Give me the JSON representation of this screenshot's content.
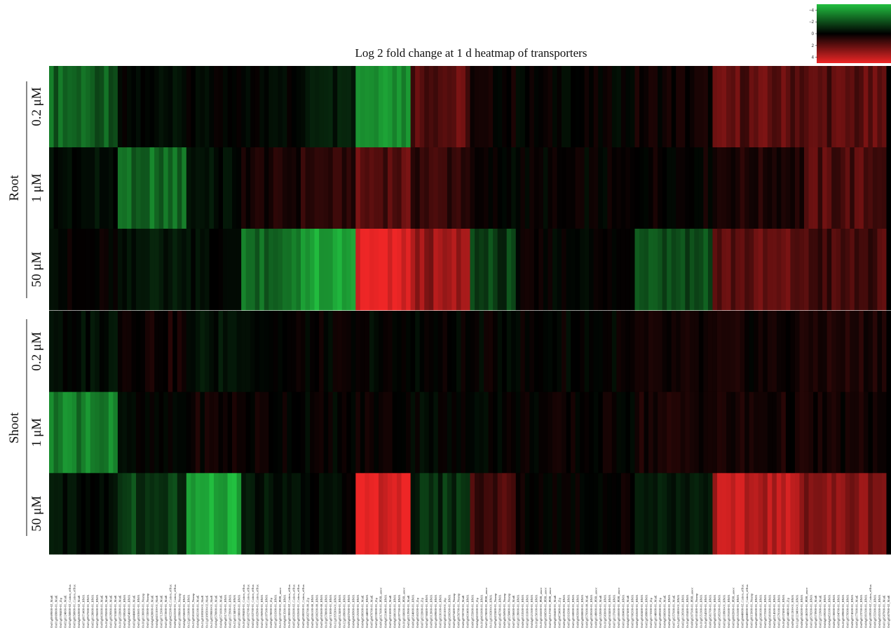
{
  "chart_data": {
    "type": "heatmap",
    "title": "Log 2 fold change at 1 d heatmap of transporters",
    "groups": [
      "Root",
      "Shoot"
    ],
    "rows": [
      {
        "group": "Root",
        "label": "0.2 μM"
      },
      {
        "group": "Root",
        "label": "1 μM"
      },
      {
        "group": "Root",
        "label": "50 μM"
      },
      {
        "group": "Shoot",
        "label": "0.2 μM"
      },
      {
        "group": "Shoot",
        "label": "1 μM"
      },
      {
        "group": "Shoot",
        "label": "50 μM"
      }
    ],
    "colorbar": {
      "min": -5,
      "max": 5,
      "ticks": [
        "−4",
        "−2",
        "0",
        "2",
        "4"
      ],
      "low_color": "#22c040",
      "mid_color": "#000000",
      "high_color": "#ee2626"
    },
    "columns": [
      "Os01g0869800-02_MatE",
      "Os01g0869800-01_MatE",
      "Os01g0198400-01_Zip",
      "Os02g0124866-01_MatE",
      "Os03g0658800-02_Cation_efflux",
      "Os03g0658800-01_Cation_efflux",
      "Os04g0662800-02_MatE",
      "Os07g0671400-01_HMA",
      "Os01g0927000-01_HMA",
      "Os02g0128000-01_HMA",
      "Os02g0196600-01_HMA",
      "Os09g0433600-01_MatE",
      "Os10g0195000-01_MatE",
      "Os01g0929900-01_MatE",
      "Os03g0763400-01_MatE",
      "Os10g0532800-01_MatE",
      "Os03g0709500-01_HMA",
      "Os04g0454000-01_HMA",
      "Os03g0448400-01_MatE",
      "Os01g0263601-01_HMA",
      "Os10g0130000-01_Nramp",
      "Os01g0733000-01_Nramp",
      "Os04g0428800-01_MatE",
      "Os04g0431100-01_MatE",
      "Os03g0712300-01_MatE",
      "Os01g0872800-01_MatE",
      "Os08g0422200-02_Cation_efflux",
      "Os08g0422200-01_Cation_efflux",
      "Os01g0199800-01_Nramp",
      "Os04g0358600-01_HMA",
      "Os12g0131800-01_HMA",
      "Os12g0581600-01_Nramp",
      "Os04g0382100-01_MatE",
      "Os11g0180500-01_MatE",
      "Os11g0180500-02_MatE",
      "Os11g0239000-01_MatE",
      "Os04g0570800-01_MatE",
      "Os04g0571600-01_MatE",
      "Os06g0517100-01_HMA",
      "Os02g0172900-01_HMA",
      "Os12g0113400-01_HMA",
      "Os01g0198000-01_HMA",
      "Os10g0590400-01_Cation_efflux",
      "Os02g0102700-02_Cation_efflux",
      "Os02g0102700-01_Cation_efflux",
      "Os08g0182900-01_Cation_efflux",
      "Os01g0196900-01_HMA",
      "Os01g0197500-01_HMA",
      "Os08g0178000-01_Zip",
      "Os05g0316300-01_HMA",
      "Os12g0132700-01_PDR_assoc",
      "Os04g0413500-01_HMA",
      "Os10g0130000-02_Cation_efflux",
      "Os05g0202600-02_Cation_efflux",
      "Os05g0202600-01_Cation_efflux",
      "Os05g0580200-01_Cation_efflux",
      "Os08g0582700-00_Zip",
      "Os05g0506100-00_HMA",
      "Os05g0506200-00_HMA",
      "Os05g0503600-00_HMA",
      "Os10g0578800-01_HMA",
      "Os01g0713000-01_HMA",
      "Os11g0195300-01_HMA",
      "Os05g0312400-01_HMA",
      "Os12g0189600-01_HMA",
      "Os08g0437600-01_HMA",
      "Os04g0436900-01_HMA",
      "Os02g0125300-01_HMA",
      "Os04g0580300-01_MatE",
      "Os03g0144800-01_HMA",
      "Os05g0470700-01_MatE",
      "Os02g0233000-01_Zip",
      "Os06g0317600-01_PDR_assoc",
      "Os04g0531400-01_HMA",
      "Os05g0315000-01_MatE",
      "Os04g0380100-01_HMA",
      "Os01g0197700-01_HMA",
      "Os10g0168600-01_PDR_assoc",
      "Os02g0212900-01_MatE",
      "Os06g0564000-01_HMA",
      "Os06g0565200-01_Zip",
      "Os07g0232800-01_Zip",
      "Os03g0768400-01_HMA",
      "Os09g0312800-01_HMA",
      "Os01g0609800-01_HMA",
      "Os03g0336100-01_HMA",
      "Os02g0581100-01_Zip",
      "Os03g0206500-01_HMA",
      "Os05g0475400-01_Nramp",
      "Os06g0656700-01_Nramp",
      "Os06g0700700-01_MatE",
      "Os09g0431400-01_HMA",
      "Os06g0555000-01_HMA",
      "Os04g0431000-01_Zip",
      "Os10g0431000-01_HMA",
      "Os01g0578000-01_PDR_assoc",
      "Os11g0136300-01_HMA",
      "Os09g0432400-01_Nramp",
      "Os01g0345700-01_HMA",
      "Os06g0656900-01_Nramp",
      "Os07g0258400-01_Nramp",
      "Os07g0258600-01_MatE",
      "Os02g0139000-01_HMA",
      "Os06g0553500-01_HMA",
      "Os03g0161800-01_HMA",
      "Os04g0521300-01_HMA",
      "Os10g0158100-01_HMA",
      "Os10g0165600-01_PDR_assoc",
      "Os09g0308500-01_PDR_assoc",
      "Os03g0312700-01_PDR_assoc",
      "Os08g0506400-01_MatE",
      "Os05g0472400-01_Zip",
      "Os06g0181900-01_HMA",
      "Os05g0316200-01_HMA",
      "Os01g0168000-01_HMA",
      "Os08g0435600-01_HMA",
      "Os02g0808800-01_HMA",
      "Os06g0579300-00_MatE",
      "Os05g0320500-01_HMA",
      "Os08g0149000-01_PDR_assoc",
      "Os03g0152000-01_MatE",
      "Os10g0583000-01_HMA",
      "Os03g0363400-01_HMA",
      "Os07g0137600-01_HMA",
      "Os05g0560600-01_PDR_assoc",
      "Os01g0186400-01_HMA",
      "Os04g0507400-01_MatE",
      "Os03g0700200-01_HMA",
      "Os08g0502600-01_HMA",
      "Os01g0582400-01_HMA",
      "Os02g0589800-01_HMA",
      "Os02g0173300-01_Zip",
      "Os05g0148600-01_MatE",
      "Os01g0589300-01_Zip",
      "Os04g0508300-01_MatE",
      "Os06g0581600-01_HMA",
      "Os07g0257600-01_MatE",
      "Os11g0216800-01_HMA",
      "Os02g0120500-01_HMA",
      "Os10g0105400-01_HMA",
      "Os08g0207500-01_PDR_assoc",
      "Os03g0101400-01_Nramp",
      "Os10g0551300-01_HMA",
      "Os10g0554300-01_HMA",
      "Os06g0581700-01_HMA",
      "Os09g0505700-01_HMA",
      "Os01g0585200-01_HMA",
      "Os03g0118900-01_HMA",
      "Os01g0191600-01_HMA",
      "Os03g0802000-01_PDR_assoc",
      "Os03g0151500-01_HMA",
      "Os05g0440000-02_Cation_efflux",
      "Os05g0440000-01_Cation_efflux",
      "Os01g0615000-01_Nramp",
      "Os06g0560500-01_HMA",
      "Os01g0208100-01_HMA",
      "Os02g0572300-01_HMA",
      "Os04g0381000-01_HMA",
      "Os02g0214500-01_HMA",
      "Os01g0579100-01_HMA",
      "Os10g0537400-01_HMA",
      "Os06g0144800-01_Zip",
      "Os09g0311200-01_HMA",
      "Os11g0123400-01_HMA",
      "Os08g0558200-01_HMA",
      "Os03g0146200-01_PDR_assoc",
      "Os01g0578200-01_HMA",
      "Os05g0573900-01_MatE",
      "Os02g0721900-01_MatE",
      "Os04g0109200-01_HMA",
      "Os04g0453100-01_HMA",
      "Os06g0130000-01_HMA",
      "Os09g0104700-01_HMA",
      "Os10g0189800-01_HMA",
      "Os01g0578300-01_HMA",
      "Os08g0374500-01_HMA",
      "Os06g0177600-01_MatE",
      "Os09g0123700-01_HMA",
      "Os04g0391500-01_HMA",
      "Os02g0109500-02_Cation_efflux",
      "Os06g0555300-02_HMA",
      "Os04g0505300-01_HMA",
      "Os01g0587900-01_MatE",
      "Os01g0587900-02_MatE"
    ],
    "value_bands": [
      {
        "from": 0,
        "to": 15,
        "values": [
          -2.5,
          -0.3,
          0,
          -0.3,
          -3.2,
          -0.4
        ]
      },
      {
        "from": 15,
        "to": 30,
        "values": [
          -0.2,
          -2.8,
          -0.6,
          0.4,
          -0.2,
          -1.6
        ]
      },
      {
        "from": 30,
        "to": 42,
        "values": [
          -0.2,
          -0.4,
          -0.2,
          -0.5,
          0.3,
          -4.5
        ]
      },
      {
        "from": 42,
        "to": 55,
        "values": [
          -0.1,
          0.5,
          -2.8,
          0,
          0.2,
          -0.5
        ]
      },
      {
        "from": 55,
        "to": 67,
        "values": [
          -0.6,
          0.9,
          -4.4,
          0,
          0,
          -0.1
        ]
      },
      {
        "from": 67,
        "to": 79,
        "values": [
          -3.5,
          1.8,
          4.6,
          -0.1,
          0.2,
          4.7
        ]
      },
      {
        "from": 79,
        "to": 92,
        "values": [
          1.9,
          1.2,
          3.1,
          0,
          -0.1,
          -1.2
        ]
      },
      {
        "from": 92,
        "to": 102,
        "values": [
          0.2,
          0,
          -1.5,
          0,
          0,
          1.4
        ]
      },
      {
        "from": 102,
        "to": 128,
        "values": [
          0,
          0,
          0,
          0,
          0.1,
          0.1
        ]
      },
      {
        "from": 128,
        "to": 145,
        "values": [
          0.3,
          0.2,
          -1.8,
          0.2,
          0.5,
          -0.6
        ]
      },
      {
        "from": 145,
        "to": 165,
        "values": [
          1.9,
          0.6,
          1.9,
          0.3,
          0.4,
          3.8
        ]
      },
      {
        "from": 165,
        "to": 183,
        "values": [
          1.8,
          1.6,
          1.3,
          0.6,
          0.3,
          2.8
        ]
      }
    ]
  }
}
